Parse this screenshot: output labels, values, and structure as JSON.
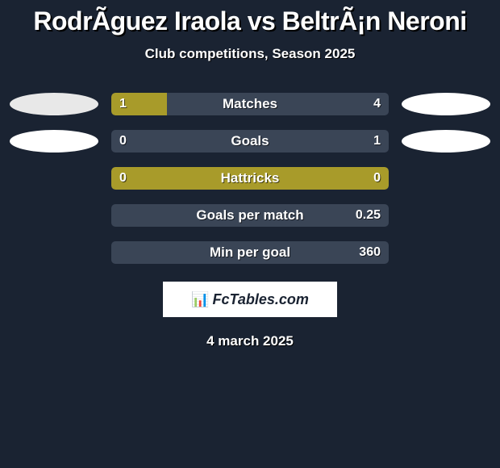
{
  "title": "RodrÃ­guez Iraola vs BeltrÃ¡n Neroni",
  "subtitle": "Club competitions, Season 2025",
  "date": "4 march 2025",
  "branding": {
    "icon": "📊",
    "text": "FcTables.com"
  },
  "colors": {
    "background": "#1a2332",
    "bar_fill": "#a89b2a",
    "bar_bg": "#3a4556",
    "badge_light": "#e8e8e8",
    "badge_white": "#ffffff"
  },
  "stats": [
    {
      "label": "Matches",
      "left_value": "1",
      "right_value": "4",
      "left_share": 20,
      "show_badges": true,
      "badge_left_color": "#e8e8e8",
      "badge_right_color": "#ffffff"
    },
    {
      "label": "Goals",
      "left_value": "0",
      "right_value": "1",
      "left_share": 0,
      "show_badges": true,
      "badge_left_color": "#ffffff",
      "badge_right_color": "#ffffff"
    },
    {
      "label": "Hattricks",
      "left_value": "0",
      "right_value": "0",
      "left_share": 100,
      "full_fill": true,
      "show_badges": false
    },
    {
      "label": "Goals per match",
      "left_value": "",
      "right_value": "0.25",
      "left_share": 0,
      "show_badges": false
    },
    {
      "label": "Min per goal",
      "left_value": "",
      "right_value": "360",
      "left_share": 0,
      "show_badges": false
    }
  ]
}
